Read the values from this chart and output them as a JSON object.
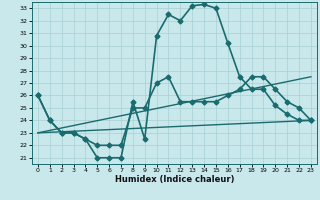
{
  "xlabel": "Humidex (Indice chaleur)",
  "xlim": [
    -0.5,
    23.5
  ],
  "ylim": [
    20.5,
    33.5
  ],
  "yticks": [
    21,
    22,
    23,
    24,
    25,
    26,
    27,
    28,
    29,
    30,
    31,
    32,
    33
  ],
  "xticks": [
    0,
    1,
    2,
    3,
    4,
    5,
    6,
    7,
    8,
    9,
    10,
    11,
    12,
    13,
    14,
    15,
    16,
    17,
    18,
    19,
    20,
    21,
    22,
    23
  ],
  "background_color": "#c8e8ec",
  "grid_color": "#a8d0d4",
  "line_color": "#1a6b6e",
  "series": [
    {
      "x": [
        0,
        1,
        2,
        3,
        4,
        5,
        6,
        7,
        8,
        9,
        10,
        11,
        12,
        13,
        14,
        15,
        16,
        17,
        18,
        19,
        20,
        21,
        22,
        23
      ],
      "y": [
        26.0,
        24.0,
        23.0,
        23.0,
        22.5,
        21.0,
        21.0,
        21.0,
        25.5,
        22.5,
        30.8,
        32.5,
        32.0,
        33.2,
        33.3,
        33.0,
        30.2,
        27.5,
        26.5,
        26.5,
        25.2,
        24.5,
        24.0,
        24.0
      ],
      "marker": "D",
      "markersize": 2.5,
      "linewidth": 1.2
    },
    {
      "x": [
        0,
        1,
        2,
        3,
        4,
        5,
        6,
        7,
        8,
        9,
        10,
        11,
        12,
        13,
        14,
        15,
        16,
        17,
        18,
        19,
        20,
        21,
        22,
        23
      ],
      "y": [
        26.0,
        24.0,
        23.0,
        23.0,
        22.5,
        22.0,
        22.0,
        22.0,
        25.0,
        25.0,
        27.0,
        27.5,
        25.5,
        25.5,
        25.5,
        25.5,
        26.0,
        26.5,
        27.5,
        27.5,
        26.5,
        25.5,
        25.0,
        24.0
      ],
      "marker": "D",
      "markersize": 2.5,
      "linewidth": 1.2
    },
    {
      "x": [
        0,
        23
      ],
      "y": [
        23.0,
        24.0
      ],
      "marker": null,
      "markersize": 0,
      "linewidth": 1.0
    },
    {
      "x": [
        0,
        23
      ],
      "y": [
        23.0,
        27.5
      ],
      "marker": null,
      "markersize": 0,
      "linewidth": 1.0
    }
  ]
}
